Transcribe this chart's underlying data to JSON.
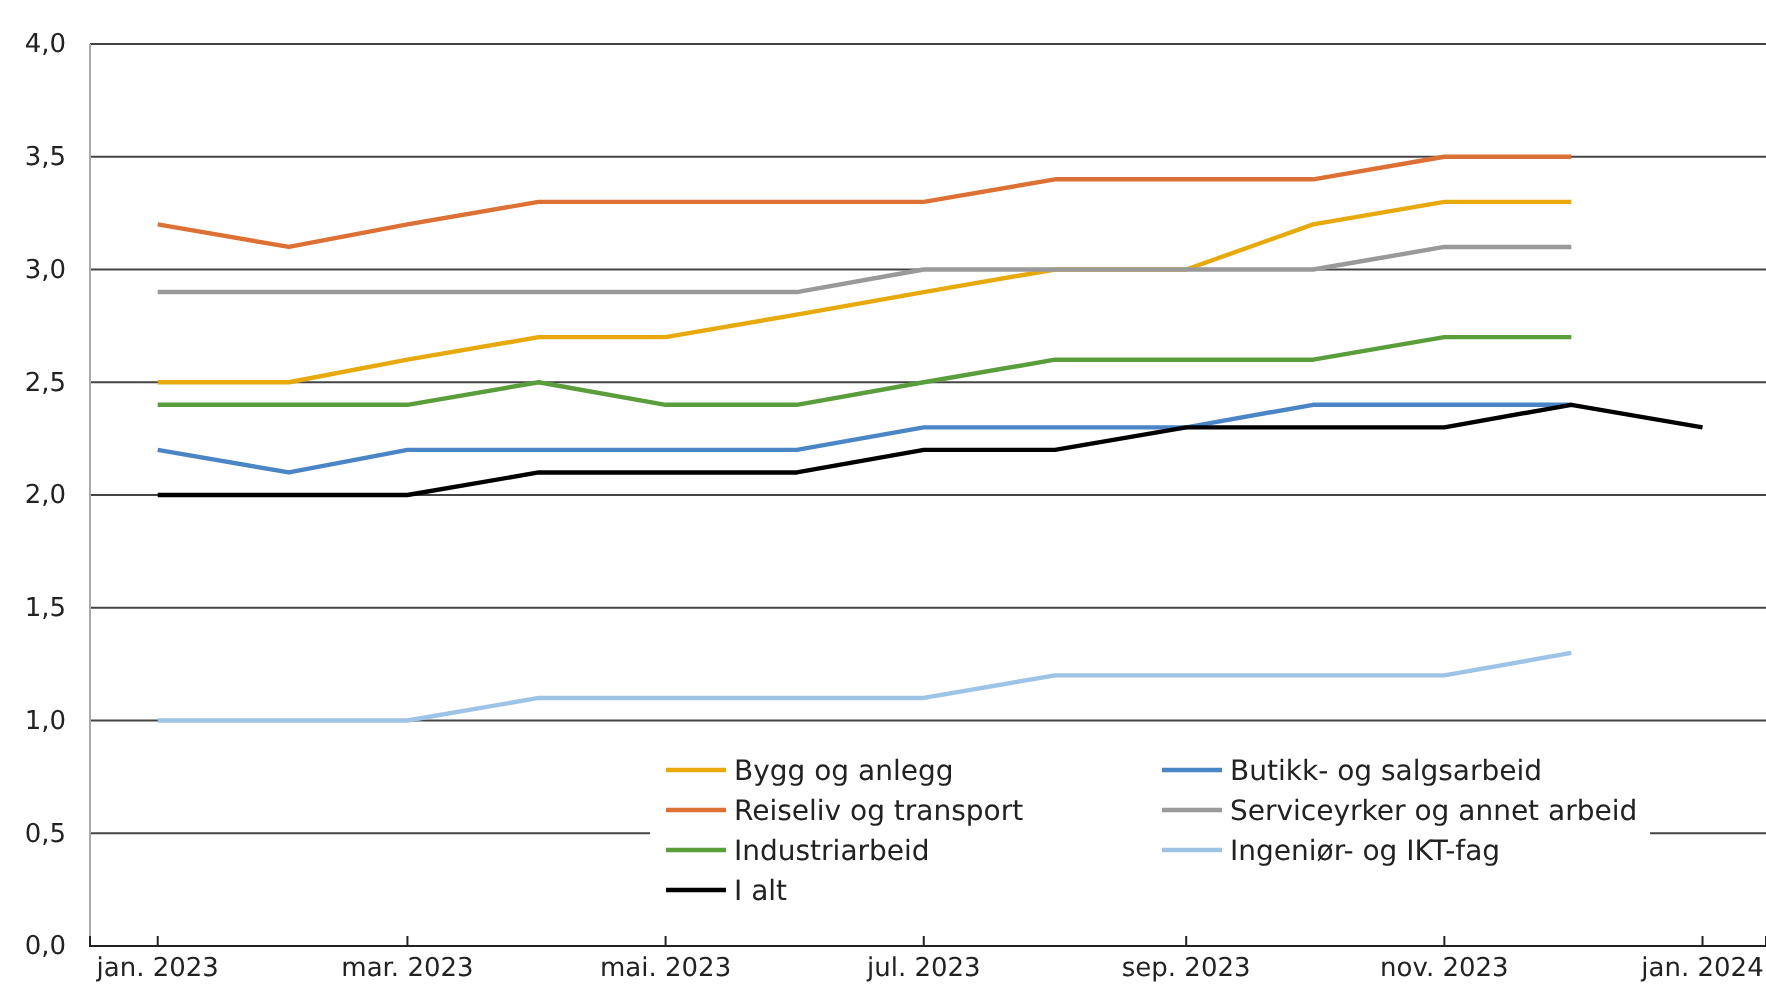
{
  "chart_data": {
    "type": "line",
    "x": [
      "2023-01",
      "2023-02",
      "2023-03",
      "2023-04",
      "2023-05",
      "2023-06",
      "2023-07",
      "2023-08",
      "2023-09",
      "2023-10",
      "2023-11",
      "2023-12"
    ],
    "series": [
      {
        "name": "Bygg og anlegg",
        "color": "#e8a90c",
        "values": [
          2.5,
          2.5,
          2.6,
          2.7,
          2.7,
          2.8,
          2.9,
          3.0,
          3.0,
          3.2,
          3.3,
          3.3
        ]
      },
      {
        "name": "Butikk- og salgsarbeid",
        "color": "#4a86c5",
        "values": [
          2.2,
          2.1,
          2.2,
          2.2,
          2.2,
          2.2,
          2.3,
          2.3,
          2.3,
          2.4,
          2.4,
          2.4
        ]
      },
      {
        "name": "Reiseliv og transport",
        "color": "#dd7034",
        "values": [
          3.2,
          3.1,
          3.2,
          3.3,
          3.3,
          3.3,
          3.3,
          3.4,
          3.4,
          3.4,
          3.5,
          3.5
        ]
      },
      {
        "name": "Serviceyrker og annet arbeid",
        "color": "#999999",
        "values": [
          2.9,
          2.9,
          2.9,
          2.9,
          2.9,
          2.9,
          3.0,
          3.0,
          3.0,
          3.0,
          3.1,
          3.1
        ]
      },
      {
        "name": "Industriarbeid",
        "color": "#5a9e3c",
        "values": [
          2.4,
          2.4,
          2.4,
          2.5,
          2.4,
          2.4,
          2.5,
          2.6,
          2.6,
          2.6,
          2.7,
          2.7
        ]
      },
      {
        "name": "Ingeniør- og IKT-fag",
        "color": "#9dc3e6",
        "values": [
          1.0,
          1.0,
          1.0,
          1.1,
          1.1,
          1.1,
          1.1,
          1.2,
          1.2,
          1.2,
          1.2,
          1.3
        ]
      },
      {
        "name": "I alt",
        "color": "#000000",
        "x": [
          "2023-01",
          "2023-02",
          "2023-03",
          "2023-04",
          "2023-05",
          "2023-06",
          "2023-07",
          "2023-08",
          "2023-09",
          "2023-10",
          "2023-11",
          "2023-12",
          "2024-01"
        ],
        "values": [
          2.0,
          2.0,
          2.0,
          2.1,
          2.1,
          2.1,
          2.2,
          2.2,
          2.3,
          2.3,
          2.3,
          2.4,
          2.3
        ]
      }
    ],
    "xlim": [
      "2022-12-16",
      "2024-01-16"
    ],
    "xticks": [
      {
        "value": "2023-01",
        "label": "jan. 2023"
      },
      {
        "value": "2023-03",
        "label": "mar. 2023"
      },
      {
        "value": "2023-05",
        "label": "mai. 2023"
      },
      {
        "value": "2023-07",
        "label": "jul. 2023"
      },
      {
        "value": "2023-09",
        "label": "sep. 2023"
      },
      {
        "value": "2023-11",
        "label": "nov. 2023"
      },
      {
        "value": "2024-01",
        "label": "jan. 2024"
      }
    ],
    "ylim": [
      0,
      4
    ],
    "yticks": [
      {
        "value": 0,
        "label": "0,0"
      },
      {
        "value": 0.5,
        "label": "0,5"
      },
      {
        "value": 1,
        "label": "1,0"
      },
      {
        "value": 1.5,
        "label": "1,5"
      },
      {
        "value": 2,
        "label": "2,0"
      },
      {
        "value": 2.5,
        "label": "2,5"
      },
      {
        "value": 3,
        "label": "3,0"
      },
      {
        "value": 3.5,
        "label": "3,5"
      },
      {
        "value": 4,
        "label": "4,0"
      }
    ],
    "grid": "y",
    "legend": "bottom",
    "marker": "none",
    "line_style": "solid"
  }
}
